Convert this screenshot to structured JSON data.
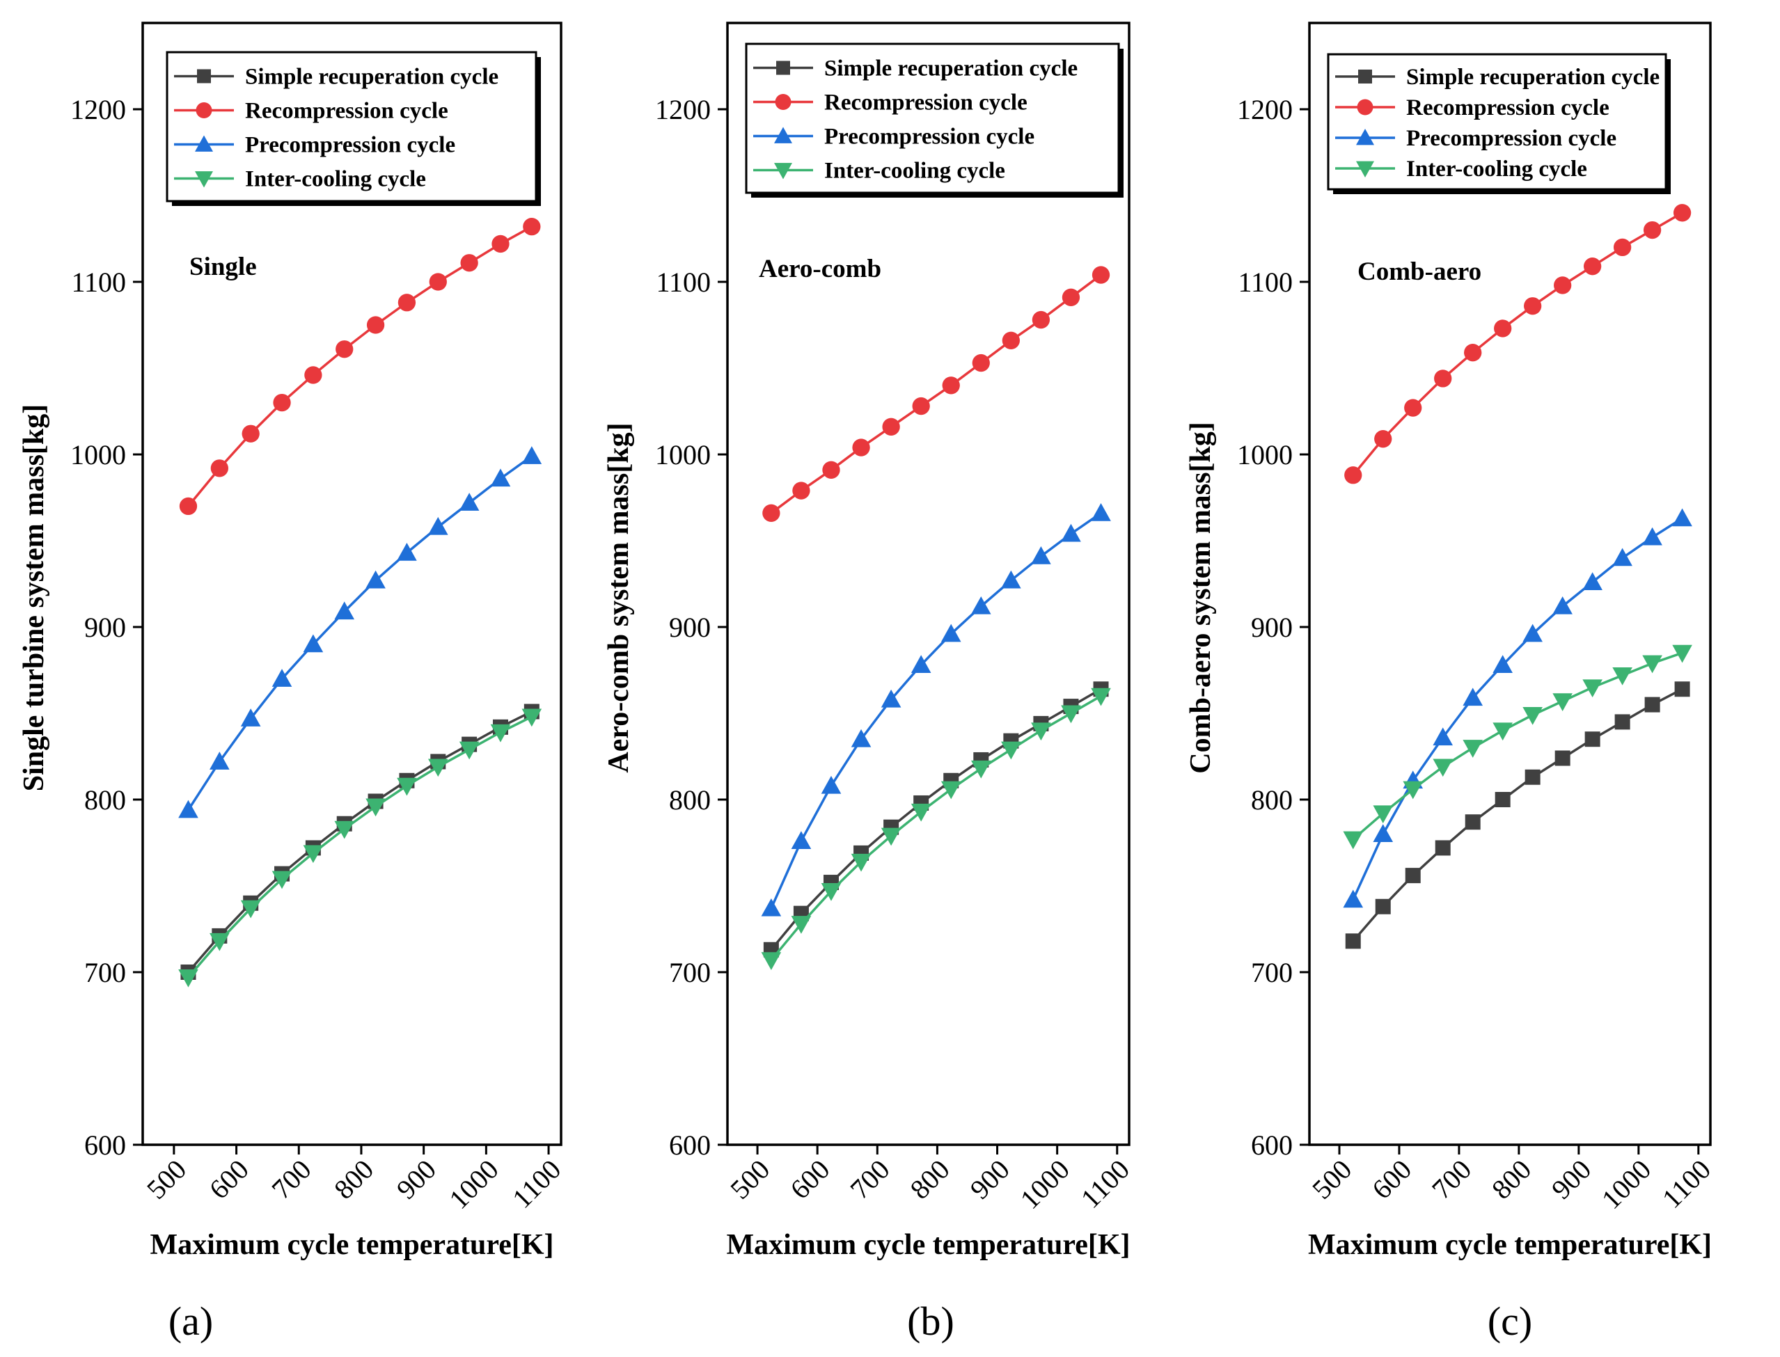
{
  "chart_data": [
    {
      "type": "line",
      "panel_label": "(a)",
      "annotation": "Single",
      "xlabel": "Maximum cycle temperature[K]",
      "ylabel": "Single turbine system mass[kg]",
      "xlim": [
        450,
        1120
      ],
      "ylim": [
        600,
        1250
      ],
      "xticks": [
        500,
        600,
        700,
        800,
        900,
        1000,
        1100
      ],
      "yticks": [
        600,
        700,
        800,
        900,
        1000,
        1100,
        1200
      ],
      "x": [
        523,
        573,
        623,
        673,
        723,
        773,
        823,
        873,
        923,
        973,
        1023,
        1073
      ],
      "legend_position": "top-left",
      "series": [
        {
          "name": "Simple recuperation cycle",
          "color": "#404040",
          "marker": "square",
          "values": [
            700,
            721,
            740,
            757,
            772,
            786,
            799,
            811,
            822,
            832,
            842,
            851
          ]
        },
        {
          "name": "Recompression cycle",
          "color": "#e8383c",
          "marker": "circle",
          "values": [
            970,
            992,
            1012,
            1030,
            1046,
            1061,
            1075,
            1088,
            1100,
            1111,
            1122,
            1132
          ]
        },
        {
          "name": "Precompression cycle",
          "color": "#1f6fd8",
          "marker": "triangle-up",
          "values": [
            794,
            822,
            847,
            870,
            890,
            909,
            927,
            943,
            958,
            972,
            986,
            999
          ]
        },
        {
          "name": "Inter-cooling cycle",
          "color": "#3cb371",
          "marker": "triangle-down",
          "values": [
            697,
            718,
            737,
            754,
            769,
            783,
            796,
            808,
            819,
            829,
            839,
            848
          ]
        }
      ]
    },
    {
      "type": "line",
      "panel_label": "(b)",
      "annotation": "Aero-comb",
      "xlabel": "Maximum cycle temperature[K]",
      "ylabel": "Aero-comb  system mass[kg]",
      "xlim": [
        450,
        1120
      ],
      "ylim": [
        600,
        1250
      ],
      "xticks": [
        500,
        600,
        700,
        800,
        900,
        1000,
        1100
      ],
      "yticks": [
        600,
        700,
        800,
        900,
        1000,
        1100,
        1200
      ],
      "x": [
        523,
        573,
        623,
        673,
        723,
        773,
        823,
        873,
        923,
        973,
        1023,
        1073
      ],
      "legend_position": "top-left",
      "series": [
        {
          "name": "Simple recuperation cycle",
          "color": "#404040",
          "marker": "square",
          "values": [
            713,
            734,
            752,
            769,
            784,
            798,
            811,
            823,
            834,
            844,
            854,
            864
          ]
        },
        {
          "name": "Recompression cycle",
          "color": "#e8383c",
          "marker": "circle",
          "values": [
            966,
            979,
            991,
            1004,
            1016,
            1028,
            1040,
            1053,
            1066,
            1078,
            1091,
            1104
          ]
        },
        {
          "name": "Precompression cycle",
          "color": "#1f6fd8",
          "marker": "triangle-up",
          "values": [
            737,
            776,
            808,
            835,
            858,
            878,
            896,
            912,
            927,
            941,
            954,
            966
          ]
        },
        {
          "name": "Inter-cooling cycle",
          "color": "#3cb371",
          "marker": "triangle-down",
          "values": [
            707,
            728,
            747,
            764,
            779,
            793,
            806,
            818,
            829,
            840,
            850,
            860
          ]
        }
      ]
    },
    {
      "type": "line",
      "panel_label": "(c)",
      "annotation": "Comb-aero",
      "xlabel": "Maximum cycle temperature[K]",
      "ylabel": "Comb-aero system mass[kg]",
      "xlim": [
        450,
        1120
      ],
      "ylim": [
        600,
        1250
      ],
      "xticks": [
        500,
        600,
        700,
        800,
        900,
        1000,
        1100
      ],
      "yticks": [
        600,
        700,
        800,
        900,
        1000,
        1100,
        1200
      ],
      "x": [
        523,
        573,
        623,
        673,
        723,
        773,
        823,
        873,
        923,
        973,
        1023,
        1073
      ],
      "legend_position": "top-left",
      "series": [
        {
          "name": "Simple recuperation cycle",
          "color": "#404040",
          "marker": "square",
          "values": [
            718,
            738,
            756,
            772,
            787,
            800,
            813,
            824,
            835,
            845,
            855,
            864
          ]
        },
        {
          "name": "Recompression cycle",
          "color": "#e8383c",
          "marker": "circle",
          "values": [
            988,
            1009,
            1027,
            1044,
            1059,
            1073,
            1086,
            1098,
            1109,
            1120,
            1130,
            1140
          ]
        },
        {
          "name": "Precompression cycle",
          "color": "#1f6fd8",
          "marker": "triangle-up",
          "values": [
            742,
            780,
            811,
            836,
            859,
            878,
            896,
            912,
            926,
            940,
            952,
            963
          ]
        },
        {
          "name": "Inter-cooling cycle",
          "color": "#3cb371",
          "marker": "triangle-down",
          "values": [
            777,
            792,
            806,
            819,
            830,
            840,
            849,
            857,
            865,
            872,
            879,
            885
          ]
        }
      ]
    }
  ]
}
